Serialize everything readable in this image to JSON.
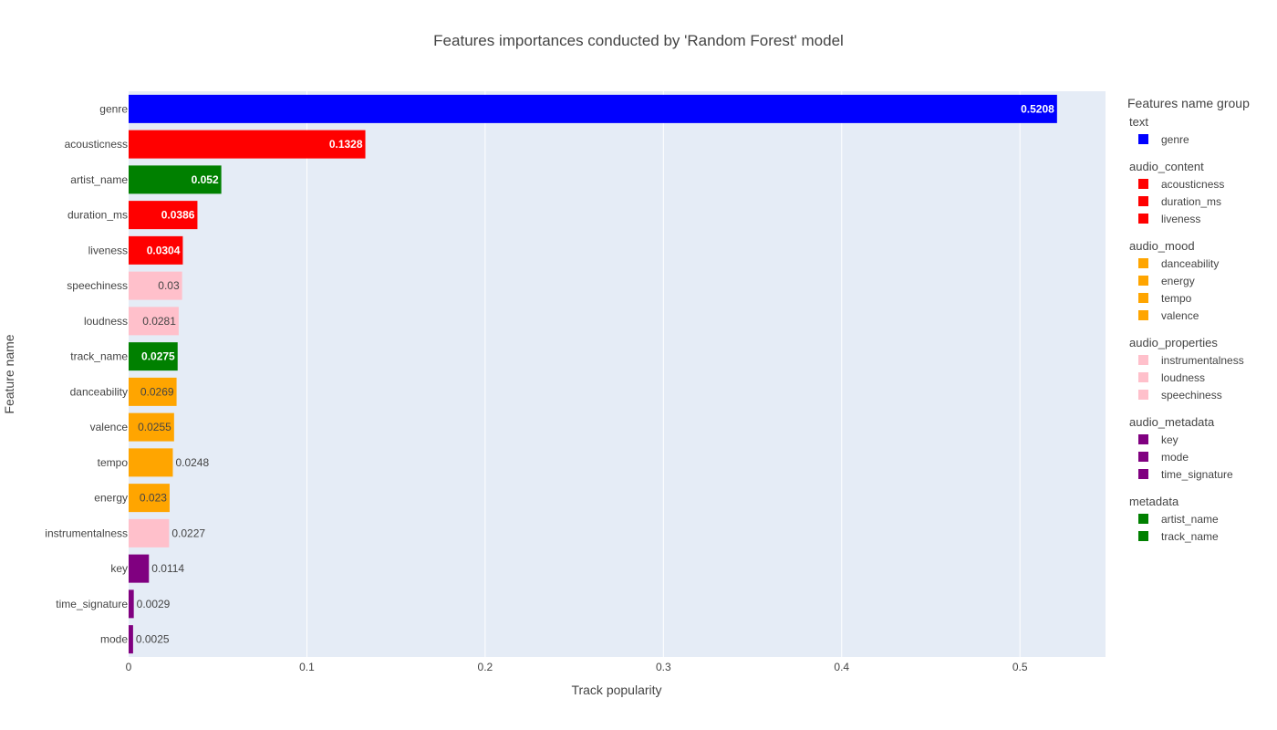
{
  "chart_data": {
    "type": "bar",
    "orientation": "horizontal",
    "title": "Features importances conducted by 'Random Forest' model",
    "xlabel": "Track popularity",
    "ylabel": "Feature name",
    "xlim": [
      0,
      0.548
    ],
    "xticks": [
      {
        "value": 0,
        "label": "0"
      },
      {
        "value": 0.1,
        "label": "0.1"
      },
      {
        "value": 0.2,
        "label": "0.2"
      },
      {
        "value": 0.3,
        "label": "0.3"
      },
      {
        "value": 0.4,
        "label": "0.4"
      },
      {
        "value": 0.5,
        "label": "0.5"
      }
    ],
    "grid": true,
    "bars": [
      {
        "name": "genre",
        "value": 0.5208,
        "label": "0.5208",
        "group": "text",
        "label_position": "inside",
        "label_color": "#ffffff",
        "label_bold": true
      },
      {
        "name": "acousticness",
        "value": 0.1328,
        "label": "0.1328",
        "group": "audio_content",
        "label_position": "inside",
        "label_color": "#ffffff",
        "label_bold": true
      },
      {
        "name": "artist_name",
        "value": 0.052,
        "label": "0.052",
        "group": "metadata",
        "label_position": "inside",
        "label_color": "#ffffff",
        "label_bold": true
      },
      {
        "name": "duration_ms",
        "value": 0.0386,
        "label": "0.0386",
        "group": "audio_content",
        "label_position": "inside",
        "label_color": "#ffffff",
        "label_bold": true
      },
      {
        "name": "liveness",
        "value": 0.0304,
        "label": "0.0304",
        "group": "audio_content",
        "label_position": "inside",
        "label_color": "#ffffff",
        "label_bold": true
      },
      {
        "name": "speechiness",
        "value": 0.03,
        "label": "0.03",
        "group": "audio_properties",
        "label_position": "inside",
        "label_color": "#444444",
        "label_bold": false
      },
      {
        "name": "loudness",
        "value": 0.0281,
        "label": "0.0281",
        "group": "audio_properties",
        "label_position": "inside",
        "label_color": "#444444",
        "label_bold": false
      },
      {
        "name": "track_name",
        "value": 0.0275,
        "label": "0.0275",
        "group": "metadata",
        "label_position": "inside",
        "label_color": "#ffffff",
        "label_bold": true
      },
      {
        "name": "danceability",
        "value": 0.0269,
        "label": "0.0269",
        "group": "audio_mood",
        "label_position": "inside",
        "label_color": "#444444",
        "label_bold": false
      },
      {
        "name": "valence",
        "value": 0.0255,
        "label": "0.0255",
        "group": "audio_mood",
        "label_position": "inside",
        "label_color": "#444444",
        "label_bold": false
      },
      {
        "name": "tempo",
        "value": 0.0248,
        "label": "0.0248",
        "group": "audio_mood",
        "label_position": "outside",
        "label_color": "#444444",
        "label_bold": false
      },
      {
        "name": "energy",
        "value": 0.023,
        "label": "0.023",
        "group": "audio_mood",
        "label_position": "inside",
        "label_color": "#444444",
        "label_bold": false
      },
      {
        "name": "instrumentalness",
        "value": 0.0227,
        "label": "0.0227",
        "group": "audio_properties",
        "label_position": "outside",
        "label_color": "#444444",
        "label_bold": false
      },
      {
        "name": "key",
        "value": 0.0114,
        "label": "0.0114",
        "group": "audio_metadata",
        "label_position": "outside",
        "label_color": "#444444",
        "label_bold": false
      },
      {
        "name": "time_signature",
        "value": 0.0029,
        "label": "0.0029",
        "group": "audio_metadata",
        "label_position": "outside",
        "label_color": "#444444",
        "label_bold": false
      },
      {
        "name": "mode",
        "value": 0.0025,
        "label": "0.0025",
        "group": "audio_metadata",
        "label_position": "outside",
        "label_color": "#444444",
        "label_bold": false
      }
    ],
    "legend": {
      "title": "Features name group",
      "placement": "right",
      "groups": [
        {
          "name": "text",
          "color": "#0000ff",
          "items": [
            "genre"
          ]
        },
        {
          "name": "audio_content",
          "color": "#ff0000",
          "items": [
            "acousticness",
            "duration_ms",
            "liveness"
          ]
        },
        {
          "name": "audio_mood",
          "color": "#ffa500",
          "items": [
            "danceability",
            "energy",
            "tempo",
            "valence"
          ]
        },
        {
          "name": "audio_properties",
          "color": "#ffc0cb",
          "items": [
            "instrumentalness",
            "loudness",
            "speechiness"
          ]
        },
        {
          "name": "audio_metadata",
          "color": "#800080",
          "items": [
            "key",
            "mode",
            "time_signature"
          ]
        },
        {
          "name": "metadata",
          "color": "#008000",
          "items": [
            "artist_name",
            "track_name"
          ]
        }
      ]
    },
    "colors": {
      "plot_background": "#e5ecf6",
      "gridline": "#ffffff"
    }
  }
}
